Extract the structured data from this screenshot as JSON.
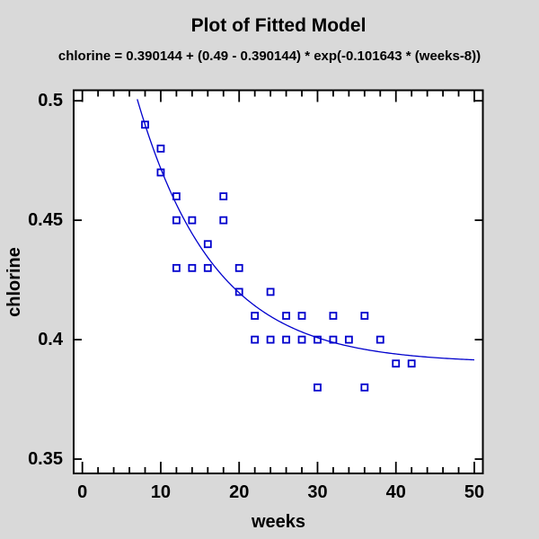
{
  "chart_data": {
    "type": "scatter",
    "title": "Plot of Fitted Model",
    "equation": "chlorine = 0.390144 + (0.49 - 0.390144) * exp(-0.101643 * (weeks-8))",
    "xlabel": "weeks",
    "ylabel": "chlorine",
    "xlim": [
      -1.11,
      51.09
    ],
    "ylim": [
      0.344,
      0.5044
    ],
    "x_major_ticks": [
      0,
      10,
      20,
      30,
      40,
      50
    ],
    "x_major_labels": [
      "0",
      "10",
      "20",
      "30",
      "40",
      "50"
    ],
    "x_minor_ticks": [
      2,
      4,
      6,
      8,
      12,
      14,
      16,
      18,
      22,
      24,
      26,
      28,
      32,
      34,
      36,
      38,
      42,
      44,
      46,
      48
    ],
    "y_major_ticks": [
      0.5,
      0.45,
      0.4,
      0.35
    ],
    "y_major_labels": [
      "0.5",
      "0.45",
      "0.4",
      "0.35"
    ],
    "grid": false,
    "legend": "none",
    "points": [
      [
        8,
        0.49
      ],
      [
        10,
        0.48
      ],
      [
        10,
        0.47
      ],
      [
        12,
        0.46
      ],
      [
        12,
        0.45
      ],
      [
        12,
        0.43
      ],
      [
        14,
        0.45
      ],
      [
        14,
        0.43
      ],
      [
        16,
        0.44
      ],
      [
        16,
        0.43
      ],
      [
        18,
        0.46
      ],
      [
        18,
        0.45
      ],
      [
        20,
        0.43
      ],
      [
        20,
        0.42
      ],
      [
        22,
        0.41
      ],
      [
        22,
        0.4
      ],
      [
        24,
        0.42
      ],
      [
        24,
        0.4
      ],
      [
        26,
        0.41
      ],
      [
        26,
        0.4
      ],
      [
        28,
        0.41
      ],
      [
        28,
        0.4
      ],
      [
        30,
        0.4
      ],
      [
        30,
        0.38
      ],
      [
        32,
        0.41
      ],
      [
        32,
        0.4
      ],
      [
        34,
        0.4
      ],
      [
        36,
        0.41
      ],
      [
        36,
        0.38
      ],
      [
        38,
        0.4
      ],
      [
        40,
        0.39
      ],
      [
        42,
        0.39
      ]
    ],
    "model": {
      "form": "chlorine = a + (b - a) * exp(r * (weeks - x0))",
      "a": 0.390144,
      "b": 0.49,
      "r": -0.101643,
      "x0": 8,
      "curve_x_range": [
        7,
        50
      ]
    }
  },
  "colors": {
    "series": "#0000CD",
    "axis": "#000000",
    "text": "#000000",
    "plot_background": "#FFFFFF",
    "window_background": "#D9D9D9"
  }
}
